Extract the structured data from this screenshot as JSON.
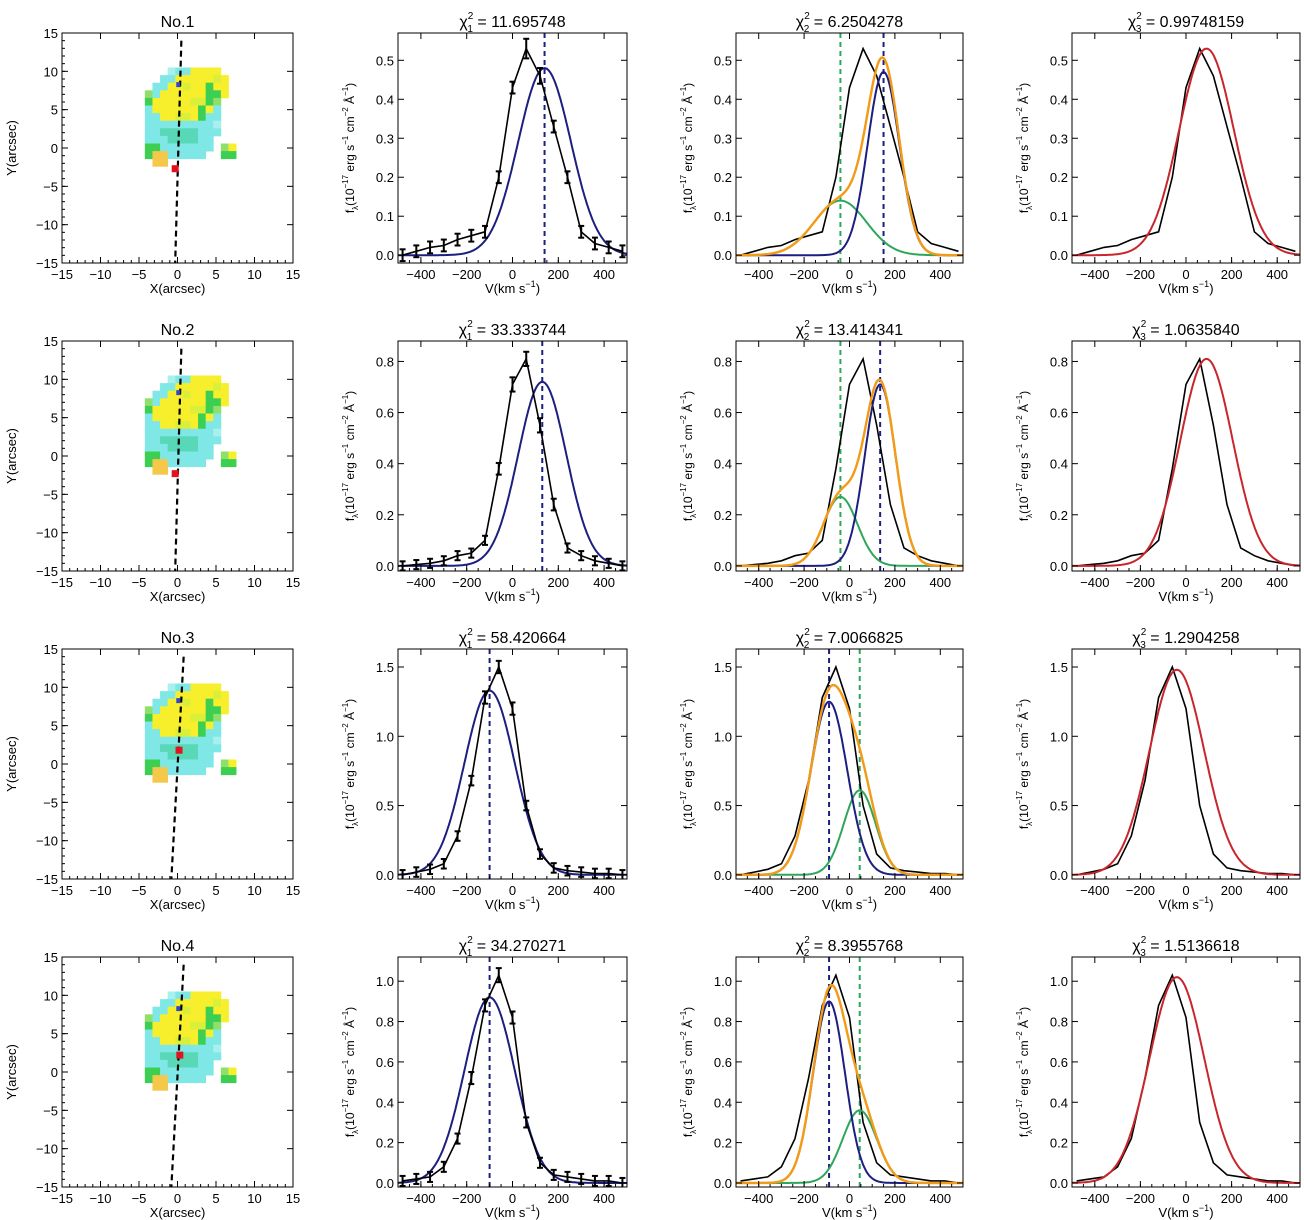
{
  "figure": {
    "rows": [
      {
        "map": {
          "title": "No.1",
          "xlabel": "X(arcsec)",
          "ylabel": "Y(arcsec)",
          "xlim": [
            -15,
            15
          ],
          "ylim": [
            -15,
            15
          ],
          "xticks": [
            "−15",
            "−10",
            "−5",
            "0",
            "5",
            "10",
            "15"
          ],
          "yticks": [
            "−15",
            "−10",
            "−5",
            "0",
            "5",
            "10",
            "15"
          ],
          "marker": [
            -0.3,
            -2.7
          ],
          "slit": [
            [
              0.5,
              14
            ],
            [
              -0.3,
              -15
            ]
          ]
        },
        "panels": [
          {
            "title_pre": "χ",
            "title_sub": "1",
            "title_sup": "2",
            "title_val": " = 11.695748",
            "peak": 0.48,
            "ylim": [
              -0.02,
              0.57
            ],
            "yticks": [
              0.0,
              0.1,
              0.2,
              0.3,
              0.4,
              0.5
            ],
            "ytick_labels": [
              "0.0",
              "0.1",
              "0.2",
              "0.3",
              "0.4",
              "0.5"
            ]
          },
          {
            "title_pre": "χ",
            "title_sub": "2",
            "title_sup": "2",
            "title_val": " = 6.2504278",
            "ylim": [
              -0.02,
              0.57
            ],
            "yticks": [
              0.0,
              0.1,
              0.2,
              0.3,
              0.4,
              0.5
            ],
            "ytick_labels": [
              "0.0",
              "0.1",
              "0.2",
              "0.3",
              "0.4",
              "0.5"
            ]
          },
          {
            "title_pre": "χ",
            "title_sub": "3",
            "title_sup": "2",
            "title_val": " = 0.99748159",
            "ylim": [
              -0.02,
              0.57
            ],
            "yticks": [
              0.0,
              0.1,
              0.2,
              0.3,
              0.4,
              0.5
            ],
            "ytick_labels": [
              "0.0",
              "0.1",
              "0.2",
              "0.3",
              "0.4",
              "0.5"
            ]
          }
        ]
      },
      {
        "map": {
          "title": "No.2",
          "xlabel": "X(arcsec)",
          "ylabel": "Y(arcsec)",
          "xlim": [
            -15,
            15
          ],
          "ylim": [
            -15,
            15
          ],
          "xticks": [
            "−15",
            "−10",
            "−5",
            "0",
            "5",
            "10",
            "15"
          ],
          "yticks": [
            "−15",
            "−10",
            "−5",
            "0",
            "5",
            "10",
            "15"
          ],
          "marker": [
            -0.3,
            -2.3
          ],
          "slit": [
            [
              0.5,
              14
            ],
            [
              -0.3,
              -15
            ]
          ]
        },
        "panels": [
          {
            "title_pre": "χ",
            "title_sub": "1",
            "title_sup": "2",
            "title_val": " = 33.333744",
            "peak": 0.72,
            "ylim": [
              -0.02,
              0.88
            ],
            "yticks": [
              0.0,
              0.2,
              0.4,
              0.6,
              0.8
            ],
            "ytick_labels": [
              "0.0",
              "0.2",
              "0.4",
              "0.6",
              "0.8"
            ]
          },
          {
            "title_pre": "χ",
            "title_sub": "2",
            "title_sup": "2",
            "title_val": " = 13.414341",
            "ylim": [
              -0.02,
              0.88
            ],
            "yticks": [
              0.0,
              0.2,
              0.4,
              0.6,
              0.8
            ],
            "ytick_labels": [
              "0.0",
              "0.2",
              "0.4",
              "0.6",
              "0.8"
            ]
          },
          {
            "title_pre": "χ",
            "title_sub": "3",
            "title_sup": "2",
            "title_val": " = 1.0635840",
            "ylim": [
              -0.02,
              0.88
            ],
            "yticks": [
              0.0,
              0.2,
              0.4,
              0.6,
              0.8
            ],
            "ytick_labels": [
              "0.0",
              "0.2",
              "0.4",
              "0.6",
              "0.8"
            ]
          }
        ]
      },
      {
        "map": {
          "title": "No.3",
          "xlabel": "X(arcsec)",
          "ylabel": "Y(arcsec)",
          "xlim": [
            -15,
            15
          ],
          "ylim": [
            -15,
            15
          ],
          "xticks": [
            "−15",
            "−10",
            "−5",
            "0",
            "5",
            "10",
            "15"
          ],
          "yticks": [
            "−15",
            "−10",
            "−5",
            "0",
            "5",
            "10",
            "15"
          ],
          "marker": [
            0.2,
            1.8
          ],
          "slit": [
            [
              0.8,
              14
            ],
            [
              -0.8,
              -15
            ]
          ]
        },
        "panels": [
          {
            "title_pre": "χ",
            "title_sub": "1",
            "title_sup": "2",
            "title_val": " = 58.420664",
            "peak": 1.33,
            "ylim": [
              -0.03,
              1.63
            ],
            "yticks": [
              0.0,
              0.5,
              1.0,
              1.5
            ],
            "ytick_labels": [
              "0.0",
              "0.5",
              "1.0",
              "1.5"
            ]
          },
          {
            "title_pre": "χ",
            "title_sub": "2",
            "title_sup": "2",
            "title_val": " = 7.0066825",
            "ylim": [
              -0.03,
              1.63
            ],
            "yticks": [
              0.0,
              0.5,
              1.0,
              1.5
            ],
            "ytick_labels": [
              "0.0",
              "0.5",
              "1.0",
              "1.5"
            ]
          },
          {
            "title_pre": "χ",
            "title_sub": "3",
            "title_sup": "2",
            "title_val": " = 1.2904258",
            "ylim": [
              -0.03,
              1.63
            ],
            "yticks": [
              0.0,
              0.5,
              1.0,
              1.5
            ],
            "ytick_labels": [
              "0.0",
              "0.5",
              "1.0",
              "1.5"
            ]
          }
        ]
      },
      {
        "map": {
          "title": "No.4",
          "xlabel": "X(arcsec)",
          "ylabel": "Y(arcsec)",
          "xlim": [
            -15,
            15
          ],
          "ylim": [
            -15,
            15
          ],
          "xticks": [
            "−15",
            "−10",
            "−5",
            "0",
            "5",
            "10",
            "15"
          ],
          "yticks": [
            "−15",
            "−10",
            "−5",
            "0",
            "5",
            "10",
            "15"
          ],
          "marker": [
            0.3,
            2.2
          ],
          "slit": [
            [
              0.8,
              14
            ],
            [
              -0.8,
              -15
            ]
          ]
        },
        "panels": [
          {
            "title_pre": "χ",
            "title_sub": "1",
            "title_sup": "2",
            "title_val": " = 34.270271",
            "peak": 0.92,
            "ylim": [
              -0.02,
              1.12
            ],
            "yticks": [
              0.0,
              0.2,
              0.4,
              0.6,
              0.8,
              1.0
            ],
            "ytick_labels": [
              "0.0",
              "0.2",
              "0.4",
              "0.6",
              "0.8",
              "1.0"
            ]
          },
          {
            "title_pre": "χ",
            "title_sub": "2",
            "title_sup": "2",
            "title_val": " = 8.3955768",
            "ylim": [
              -0.02,
              1.12
            ],
            "yticks": [
              0.0,
              0.2,
              0.4,
              0.6,
              0.8,
              1.0
            ],
            "ytick_labels": [
              "0.0",
              "0.2",
              "0.4",
              "0.6",
              "0.8",
              "1.0"
            ]
          },
          {
            "title_pre": "χ",
            "title_sub": "3",
            "title_sup": "2",
            "title_val": " = 1.5136618",
            "ylim": [
              -0.02,
              1.12
            ],
            "yticks": [
              0.0,
              0.2,
              0.4,
              0.6,
              0.8,
              1.0
            ],
            "ytick_labels": [
              "0.0",
              "0.2",
              "0.4",
              "0.6",
              "0.8",
              "1.0"
            ]
          }
        ]
      }
    ],
    "spectrum_xlabel_pre": "V(km s",
    "spectrum_xlabel_sup": "−1",
    "spectrum_xlabel_post": ")",
    "spectrum_ylabel": {
      "f": "f",
      "lambda": "λ",
      "open": "(10",
      "exp17": "−17",
      "erg": " erg s",
      "exp1": "−1",
      "cm": " cm",
      "exp2": "−2",
      "ang": " Å",
      "close": ")"
    },
    "spectrum_xlim": [
      -500,
      500
    ],
    "spectrum_xticks": [
      -400,
      -200,
      0,
      200,
      400
    ],
    "spectrum_xtick_labels": [
      "−400",
      "−200",
      "0",
      "200",
      "400"
    ],
    "colors": {
      "observed": "#000000",
      "single_fit": "#1c1f80",
      "broad_component": "#2ea65a",
      "two_component_sum": "#f39a17",
      "three_component_sum": "#c8262c"
    }
  },
  "chart_data": [
    {
      "type": "line",
      "row": 1,
      "x": [
        -480,
        -420,
        -360,
        -300,
        -240,
        -180,
        -120,
        -60,
        0,
        60,
        120,
        180,
        240,
        300,
        360,
        420,
        480
      ],
      "observed": [
        0.0,
        0.01,
        0.02,
        0.025,
        0.04,
        0.05,
        0.06,
        0.2,
        0.43,
        0.53,
        0.46,
        0.33,
        0.2,
        0.06,
        0.03,
        0.02,
        0.01
      ],
      "error": [
        0.01,
        0.01,
        0.01,
        0.01,
        0.01,
        0.01,
        0.01,
        0.01,
        0.01,
        0.02,
        0.015,
        0.01,
        0.01,
        0.01,
        0.01,
        0.01,
        0.01
      ],
      "single_fit": {
        "amp": 0.48,
        "center": 140,
        "sigma": 115,
        "base": 0.0
      },
      "single_fit_marker": 140,
      "comp_narrow": {
        "amp": 0.47,
        "center": 150,
        "sigma": 70
      },
      "comp_broad": {
        "amp": 0.14,
        "center": -40,
        "sigma": 115
      },
      "comp_narrow_marker": 150,
      "comp_broad_marker": -40,
      "three_fit": {
        "amp": 0.53,
        "center": 90,
        "sigma": 120,
        "base": 0.0
      }
    },
    {
      "type": "line",
      "row": 2,
      "x": [
        -480,
        -420,
        -360,
        -300,
        -240,
        -180,
        -120,
        -60,
        0,
        60,
        120,
        180,
        240,
        300,
        360,
        420,
        480
      ],
      "observed": [
        0.0,
        0.005,
        0.01,
        0.02,
        0.04,
        0.05,
        0.1,
        0.38,
        0.71,
        0.81,
        0.55,
        0.24,
        0.07,
        0.04,
        0.02,
        0.01,
        0.0
      ],
      "error": [
        0.01,
        0.01,
        0.01,
        0.01,
        0.01,
        0.01,
        0.01,
        0.015,
        0.02,
        0.02,
        0.02,
        0.015,
        0.01,
        0.01,
        0.01,
        0.01,
        0.01
      ],
      "single_fit": {
        "amp": 0.72,
        "center": 130,
        "sigma": 105,
        "base": 0.0
      },
      "single_fit_marker": 130,
      "comp_narrow": {
        "amp": 0.71,
        "center": 135,
        "sigma": 68
      },
      "comp_broad": {
        "amp": 0.27,
        "center": -40,
        "sigma": 75
      },
      "comp_narrow_marker": 135,
      "comp_broad_marker": -40,
      "three_fit": {
        "amp": 0.81,
        "center": 90,
        "sigma": 115,
        "base": 0.0
      }
    },
    {
      "type": "line",
      "row": 3,
      "x": [
        -480,
        -420,
        -360,
        -300,
        -240,
        -180,
        -120,
        -60,
        0,
        60,
        120,
        180,
        240,
        300,
        360,
        420,
        480
      ],
      "observed": [
        0.0,
        0.02,
        0.04,
        0.08,
        0.28,
        0.68,
        1.28,
        1.5,
        1.2,
        0.5,
        0.15,
        0.05,
        0.03,
        0.02,
        0.01,
        0.01,
        0.0
      ],
      "error": [
        0.02,
        0.02,
        0.02,
        0.02,
        0.02,
        0.02,
        0.03,
        0.03,
        0.03,
        0.02,
        0.02,
        0.02,
        0.02,
        0.02,
        0.02,
        0.02,
        0.02
      ],
      "single_fit": {
        "amp": 1.33,
        "center": -100,
        "sigma": 110,
        "base": 0.0
      },
      "single_fit_marker": -100,
      "comp_narrow": {
        "amp": 1.25,
        "center": -90,
        "sigma": 80
      },
      "comp_broad": {
        "amp": 0.61,
        "center": 45,
        "sigma": 70
      },
      "comp_narrow_marker": -90,
      "comp_broad_marker": 45,
      "three_fit": {
        "amp": 1.48,
        "center": -40,
        "sigma": 120,
        "base": 0.0
      }
    },
    {
      "type": "line",
      "row": 4,
      "x": [
        -480,
        -420,
        -360,
        -300,
        -240,
        -180,
        -120,
        -60,
        0,
        60,
        120,
        180,
        240,
        300,
        360,
        420,
        480
      ],
      "observed": [
        0.01,
        0.02,
        0.03,
        0.08,
        0.22,
        0.52,
        0.88,
        1.03,
        0.82,
        0.3,
        0.1,
        0.04,
        0.03,
        0.02,
        0.01,
        0.01,
        0.0
      ],
      "error": [
        0.015,
        0.015,
        0.015,
        0.015,
        0.015,
        0.02,
        0.02,
        0.025,
        0.02,
        0.015,
        0.015,
        0.015,
        0.015,
        0.015,
        0.015,
        0.015,
        0.015
      ],
      "single_fit": {
        "amp": 0.92,
        "center": -100,
        "sigma": 110,
        "base": 0.0
      },
      "single_fit_marker": -100,
      "comp_narrow": {
        "amp": 0.9,
        "center": -90,
        "sigma": 70
      },
      "comp_broad": {
        "amp": 0.36,
        "center": 45,
        "sigma": 75
      },
      "comp_narrow_marker": -90,
      "comp_broad_marker": 45,
      "three_fit": {
        "amp": 1.02,
        "center": -40,
        "sigma": 120,
        "base": 0.0
      }
    }
  ]
}
